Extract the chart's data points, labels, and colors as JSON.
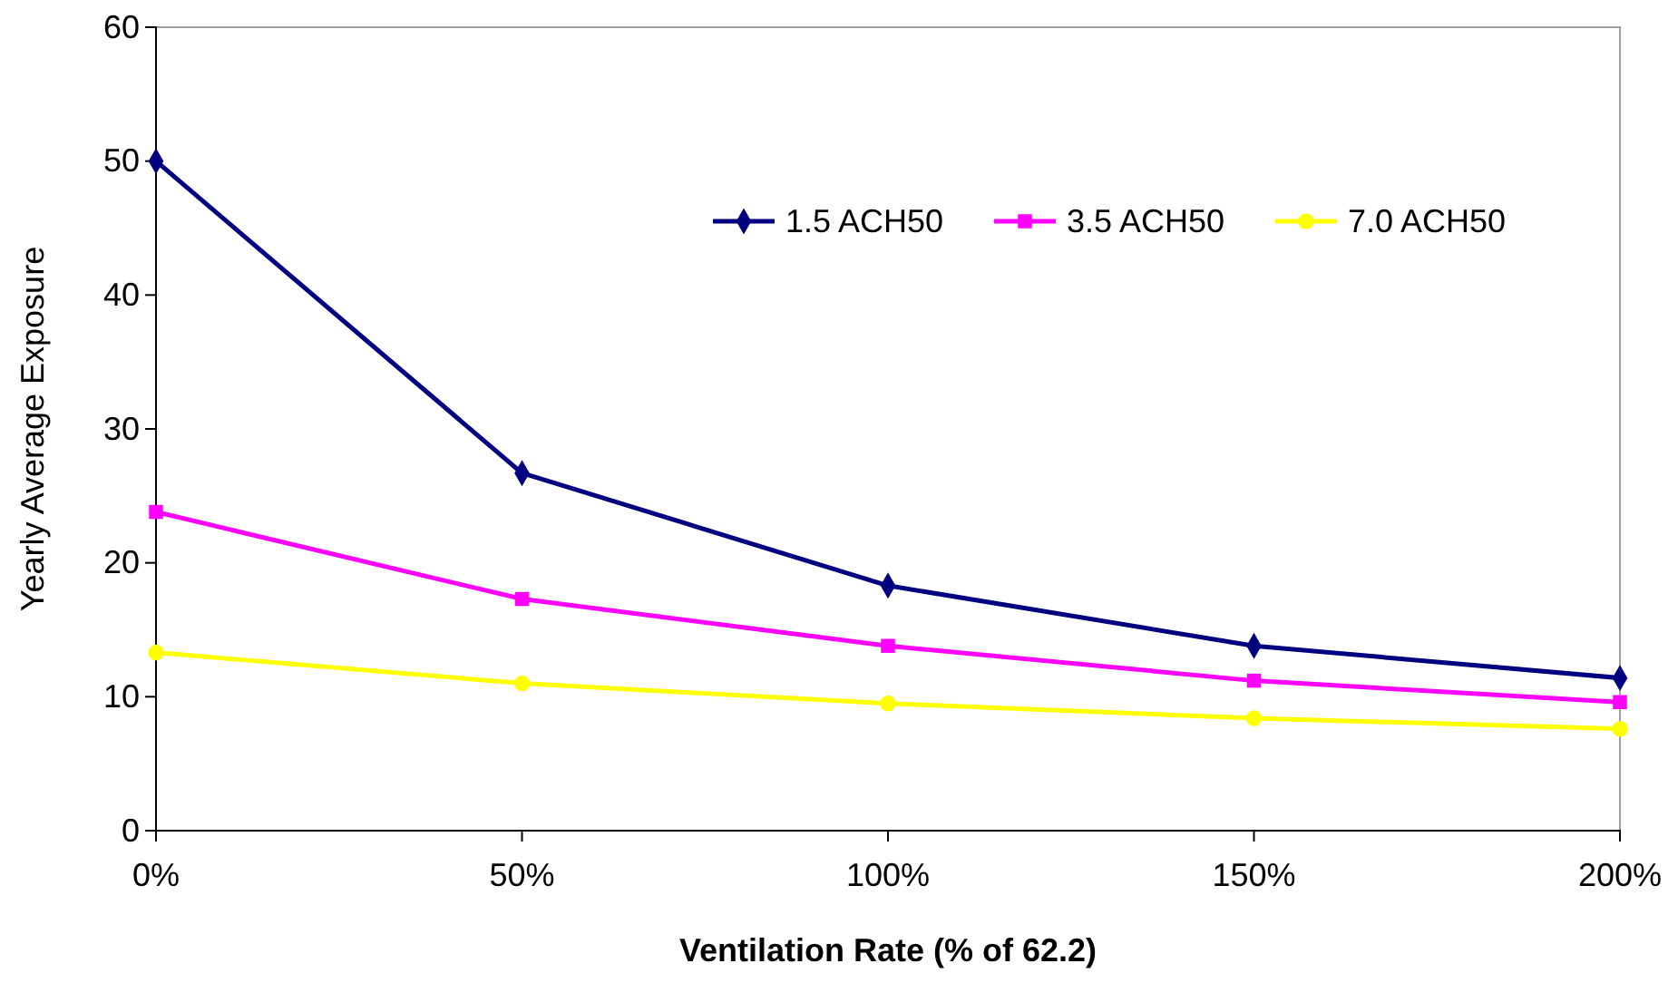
{
  "chart_data": {
    "type": "line",
    "xlabel": "Ventilation Rate (% of 62.2)",
    "ylabel": "Yearly Average Exposure",
    "categories": [
      "0%",
      "50%",
      "100%",
      "150%",
      "200%"
    ],
    "ylim": [
      0,
      60
    ],
    "yticks": [
      0,
      10,
      20,
      30,
      40,
      50,
      60
    ],
    "grid": false,
    "legend": "top right",
    "series": [
      {
        "name": "1.5 ACH50",
        "color": "#000080",
        "marker": "diamond",
        "values": [
          50,
          26.7,
          18.3,
          13.8,
          11.4
        ]
      },
      {
        "name": "3.5 ACH50",
        "color": "#ff00ff",
        "marker": "square",
        "values": [
          23.8,
          17.3,
          13.8,
          11.2,
          9.6
        ]
      },
      {
        "name": "7.0 ACH50",
        "color": "#ffff00",
        "marker": "circle",
        "values": [
          13.3,
          11.0,
          9.5,
          8.4,
          7.6
        ]
      }
    ]
  }
}
